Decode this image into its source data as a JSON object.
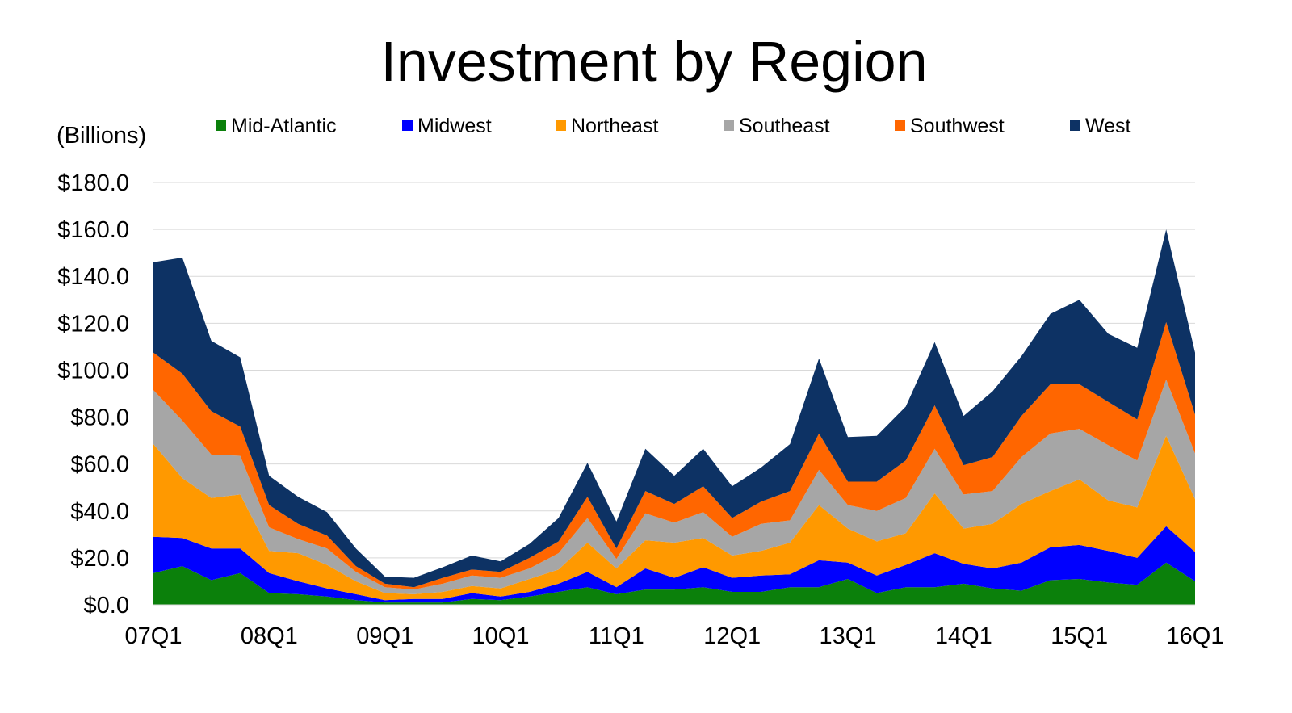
{
  "chart_data": {
    "type": "area",
    "stacked": true,
    "title": "Investment by Region",
    "unit_label": "(Billions)",
    "legend_position": "top",
    "grid": true,
    "x": [
      "07Q1",
      "07Q2",
      "07Q3",
      "07Q4",
      "08Q1",
      "08Q2",
      "08Q3",
      "08Q4",
      "09Q1",
      "09Q2",
      "09Q3",
      "09Q4",
      "10Q1",
      "10Q2",
      "10Q3",
      "10Q4",
      "11Q1",
      "11Q2",
      "11Q3",
      "11Q4",
      "12Q1",
      "12Q2",
      "12Q3",
      "12Q4",
      "13Q1",
      "13Q2",
      "13Q3",
      "13Q4",
      "14Q1",
      "14Q2",
      "14Q3",
      "14Q4",
      "15Q1",
      "15Q2",
      "15Q3",
      "15Q4",
      "16Q1"
    ],
    "x_tick_labels": [
      "07Q1",
      "08Q1",
      "09Q1",
      "10Q1",
      "11Q1",
      "12Q1",
      "13Q1",
      "14Q1",
      "15Q1",
      "16Q1"
    ],
    "ylim": [
      0,
      180
    ],
    "y_ticks": [
      "$0.0",
      "$20.0",
      "$40.0",
      "$60.0",
      "$80.0",
      "$100.0",
      "$120.0",
      "$140.0",
      "$160.0",
      "$180.0"
    ],
    "series": [
      {
        "name": "Mid-Atlantic",
        "color": "#0b800b",
        "values": [
          13.5,
          16.5,
          10.5,
          13.5,
          5.0,
          4.5,
          3.5,
          2.0,
          1.0,
          1.0,
          1.0,
          2.5,
          2.0,
          3.5,
          5.5,
          7.5,
          4.5,
          6.5,
          6.5,
          7.5,
          5.5,
          5.5,
          7.5,
          7.5,
          11.0,
          5.0,
          7.5,
          7.5,
          9.0,
          7.0,
          6.0,
          10.5,
          11.0,
          9.5,
          8.5,
          18.0,
          10.0
        ]
      },
      {
        "name": "Midwest",
        "color": "#0000ff",
        "values": [
          15.5,
          12.0,
          13.5,
          10.5,
          8.5,
          5.5,
          3.5,
          2.5,
          1.0,
          1.5,
          1.5,
          2.5,
          1.5,
          2.0,
          3.5,
          6.5,
          3.0,
          9.0,
          5.0,
          8.5,
          6.0,
          7.0,
          5.5,
          11.5,
          7.0,
          7.5,
          9.5,
          14.5,
          8.5,
          8.5,
          12.0,
          14.0,
          14.5,
          13.5,
          11.5,
          15.5,
          12.5
        ]
      },
      {
        "name": "Northeast",
        "color": "#ff9900",
        "values": [
          39.5,
          25.5,
          21.5,
          23.0,
          9.5,
          12.0,
          10.0,
          5.5,
          3.0,
          2.0,
          3.0,
          3.0,
          3.5,
          5.5,
          6.0,
          12.5,
          8.0,
          12.0,
          15.0,
          12.5,
          9.5,
          10.5,
          13.5,
          23.5,
          14.5,
          14.5,
          13.5,
          25.5,
          15.0,
          19.0,
          25.0,
          24.0,
          28.0,
          21.5,
          21.5,
          38.5,
          22.5
        ]
      },
      {
        "name": "Southeast",
        "color": "#a6a6a6",
        "values": [
          23.0,
          24.5,
          18.5,
          16.5,
          10.0,
          6.0,
          7.0,
          4.0,
          2.5,
          2.0,
          3.5,
          4.5,
          4.5,
          4.5,
          7.0,
          10.5,
          4.0,
          11.5,
          8.5,
          11.0,
          8.0,
          11.5,
          9.5,
          15.0,
          10.0,
          13.0,
          15.0,
          19.0,
          14.5,
          14.0,
          20.0,
          24.5,
          21.5,
          23.5,
          20.0,
          24.0,
          19.5
        ]
      },
      {
        "name": "Southwest",
        "color": "#ff6600",
        "values": [
          16.0,
          20.0,
          18.5,
          12.5,
          9.5,
          6.5,
          5.5,
          2.5,
          1.5,
          1.0,
          2.5,
          2.5,
          2.5,
          4.5,
          5.0,
          9.0,
          4.5,
          9.5,
          8.0,
          11.0,
          8.0,
          9.5,
          12.5,
          15.5,
          10.0,
          12.5,
          16.0,
          18.5,
          12.5,
          14.5,
          17.5,
          21.0,
          19.0,
          18.5,
          17.5,
          24.5,
          16.5
        ]
      },
      {
        "name": "West",
        "color": "#0d3264",
        "values": [
          38.5,
          49.5,
          30.0,
          29.5,
          12.5,
          11.5,
          10.0,
          7.5,
          3.0,
          4.0,
          4.5,
          6.0,
          4.5,
          6.0,
          10.0,
          14.5,
          11.5,
          18.0,
          12.0,
          16.0,
          13.5,
          14.5,
          20.0,
          32.0,
          19.0,
          19.5,
          23.0,
          27.0,
          21.0,
          28.0,
          25.5,
          30.0,
          36.0,
          29.0,
          30.5,
          39.5,
          26.5
        ]
      }
    ]
  }
}
